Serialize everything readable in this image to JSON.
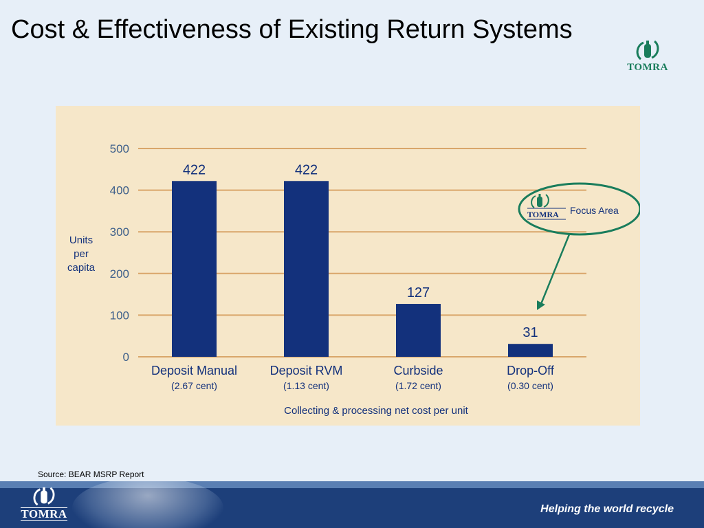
{
  "slide": {
    "title": "Cost & Effectiveness of Existing Return Systems",
    "logo_text": "TOMRA",
    "source": "Source:  BEAR MSRP Report",
    "tagline": "Helping the world recycle"
  },
  "callout": {
    "logo_text": "TOMRA",
    "label": "Focus Area"
  },
  "colors": {
    "bar": "#13317c",
    "grid": "#d9a66a",
    "axis_text": "#3d5f8a",
    "panel_bg": "#f6e7c9",
    "accent_green": "#1a7d5c",
    "footer_bg": "#1d3f7a"
  },
  "chart_data": {
    "type": "bar",
    "categories": [
      "Deposit Manual",
      "Deposit RVM",
      "Curbside",
      "Drop-Off"
    ],
    "sublabels": [
      "(2.67 cent)",
      "(1.13 cent)",
      "(1.72 cent)",
      "(0.30 cent)"
    ],
    "values": [
      422,
      422,
      127,
      31
    ],
    "data_labels": [
      "422",
      "422",
      "127",
      "31"
    ],
    "ylabel": [
      "Units",
      "per",
      "capita"
    ],
    "xlabel": "Collecting & processing net cost per unit",
    "ylim": [
      0,
      500
    ],
    "yticks": [
      0,
      100,
      200,
      300,
      400,
      500
    ],
    "grid": true,
    "highlight_category": "Drop-Off"
  }
}
